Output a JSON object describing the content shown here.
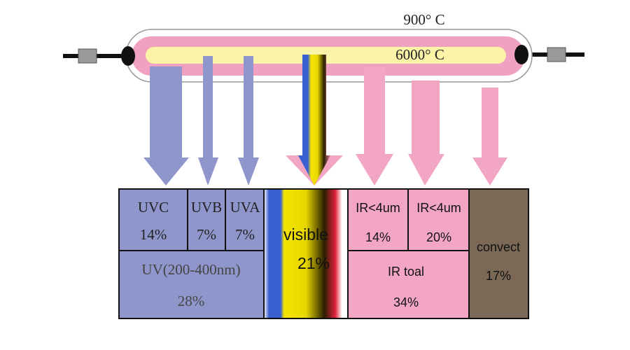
{
  "lamp": {
    "outer_temp": "900° C",
    "inner_temp": "6000° C"
  },
  "boxes": {
    "uvc": {
      "label": "UVC",
      "value": "14%"
    },
    "uvb": {
      "label": "UVB",
      "value": "7%"
    },
    "uva": {
      "label": "UVA",
      "value": "7%"
    },
    "uv": {
      "label": "UV(200-400nm)",
      "value": "28%"
    },
    "visible": {
      "label": "visible",
      "value": "21%"
    },
    "ir1": {
      "label": "IR<4um",
      "value": "14%"
    },
    "ir2": {
      "label": "IR<4um",
      "value": "20%"
    },
    "ir": {
      "label": "IR toal",
      "value": "34%"
    },
    "convect": {
      "label": "convect",
      "value": "17%"
    }
  }
}
